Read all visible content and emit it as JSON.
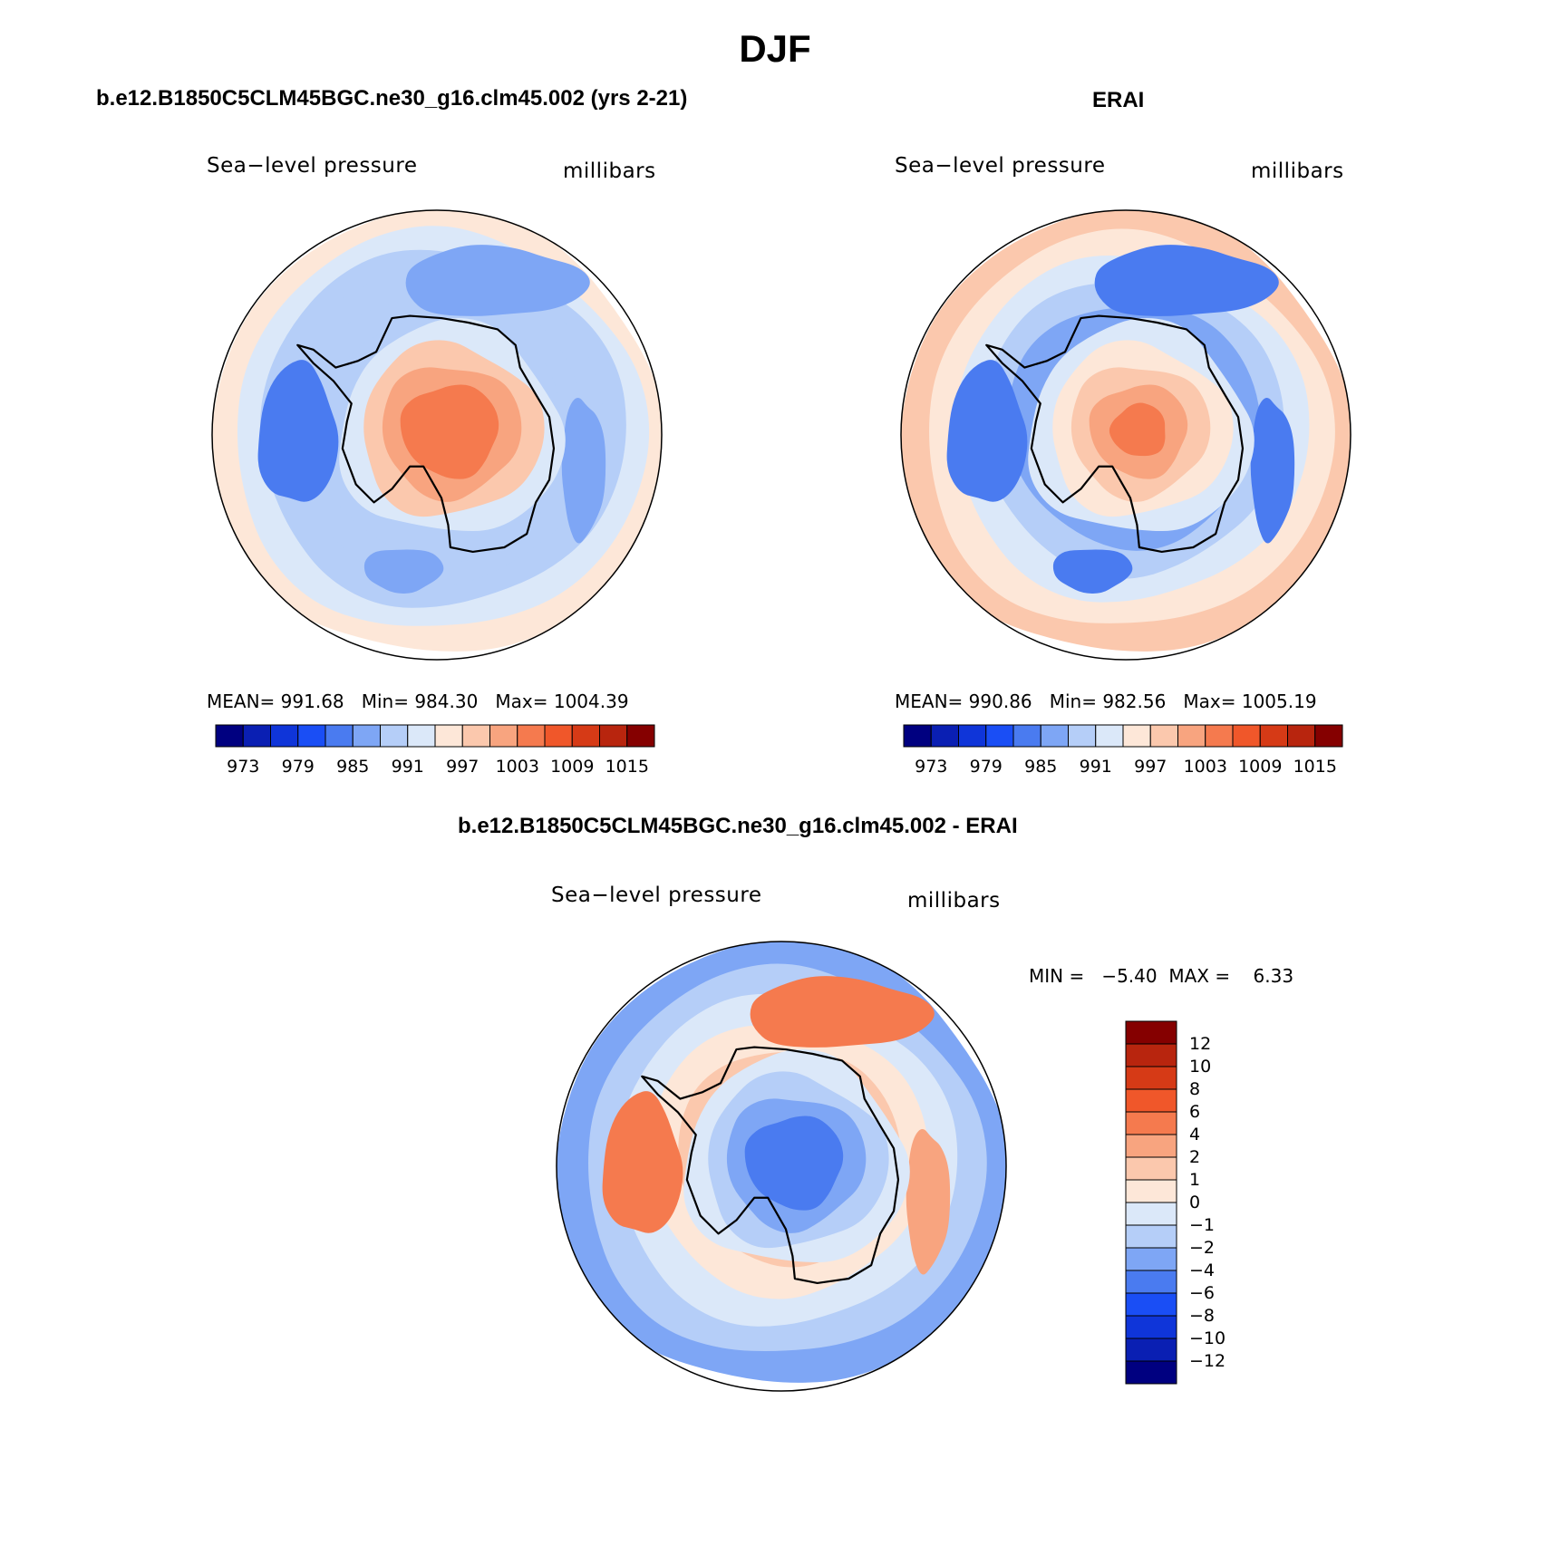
{
  "figure": {
    "title": "DJF",
    "test_case_title": "b.e12.B1850C5CLM45BGC.ne30_g16.clm45.002 (yrs 2-21)",
    "reference_title": "ERAI",
    "diff_title": "b.e12.B1850C5CLM45BGC.ne30_g16.clm45.002 - ERAI"
  },
  "colors": {
    "abs_scale": [
      "#000080",
      "#0a1fb3",
      "#0f35d9",
      "#1a4ef5",
      "#4a7bf0",
      "#7ea6f5",
      "#b5cef8",
      "#dbe8f9",
      "#fde7d8",
      "#fbc8ad",
      "#f8a47f",
      "#f57a4e",
      "#f0572a",
      "#d63a16",
      "#b8250e",
      "#850000"
    ],
    "diff_scale": [
      "#000080",
      "#0a1fb3",
      "#0f35d9",
      "#1a4ef5",
      "#4a7bf0",
      "#7ea6f5",
      "#b5cef8",
      "#dbe8f9",
      "#fde7d8",
      "#fbc8ad",
      "#f8a47f",
      "#f57a4e",
      "#f0572a",
      "#d63a16",
      "#b8250e",
      "#850000"
    ]
  },
  "chart_data": [
    {
      "type": "contour",
      "id": "test",
      "title": "b.e12.B1850C5CLM45BGC.ne30_g16.clm45.002 (yrs 2-21)",
      "left_label": "Sea−level pressure",
      "right_label": "millibars",
      "projection": "south polar stereographic",
      "stats": {
        "mean_label": "MEAN=",
        "mean": "991.68",
        "min_label": "Min=",
        "min": "984.30",
        "max_label": "Max=",
        "max": "1004.39"
      },
      "colorbar_ticks": [
        "973",
        "979",
        "985",
        "991",
        "997",
        "1003",
        "1009",
        "1015"
      ],
      "fields": {
        "ring_levels": [
          8,
          7,
          6,
          6,
          6,
          6,
          5,
          5,
          5
        ],
        "interior_levels": [
          7,
          9,
          10,
          11
        ],
        "blob_levels": [
          4,
          5,
          5,
          5
        ]
      }
    },
    {
      "type": "contour",
      "id": "reference",
      "title": "ERAI",
      "left_label": "Sea−level pressure",
      "right_label": "millibars",
      "projection": "south polar stereographic",
      "stats": {
        "mean_label": "MEAN=",
        "mean": "990.86",
        "min_label": "Min=",
        "min": "982.56",
        "max_label": "Max=",
        "max": "1005.19"
      },
      "colorbar_ticks": [
        "973",
        "979",
        "985",
        "991",
        "997",
        "1003",
        "1009",
        "1015"
      ],
      "fields": {
        "ring_levels": [
          9,
          8,
          7,
          6,
          5,
          5,
          4,
          4
        ],
        "interior_levels": [
          7,
          8,
          9,
          10,
          11
        ],
        "blob_levels": [
          4,
          4,
          4,
          4
        ]
      }
    },
    {
      "type": "contour",
      "id": "difference",
      "title": "b.e12.B1850C5CLM45BGC.ne30_g16.clm45.002 - ERAI",
      "left_label": "Sea−level pressure",
      "right_label": "millibars",
      "projection": "south polar stereographic",
      "stats": {
        "min_label": "MIN =",
        "min": "−5.40",
        "max_label": "MAX =",
        "max": "6.33"
      },
      "colorbar_ticks": [
        "12",
        "10",
        "8",
        "6",
        "4",
        "2",
        "1",
        "0",
        "−1",
        "−2",
        "−4",
        "−6",
        "−8",
        "−10",
        "−12"
      ],
      "fields": {
        "ring_levels": [
          5,
          6,
          7,
          8,
          9,
          9,
          10
        ],
        "interior_levels": [
          7,
          6,
          5,
          4
        ],
        "blob_levels": [
          11,
          11,
          10
        ]
      }
    }
  ]
}
